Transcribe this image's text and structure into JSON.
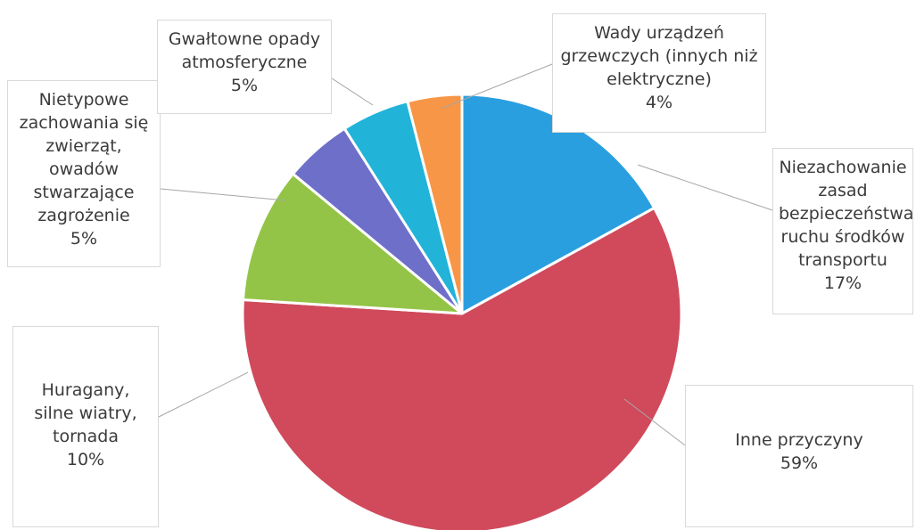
{
  "chart_data": {
    "type": "pie",
    "legend": "none",
    "slices": [
      {
        "label_lines": [
          "Niezachowanie",
          "zasad",
          "bezpieczeństwa",
          "ruchu środków",
          "transportu"
        ],
        "value": 17,
        "value_label": "17%",
        "color": "#2a9fe0"
      },
      {
        "label_lines": [
          "Inne przyczyny"
        ],
        "value": 59,
        "value_label": "59%",
        "color": "#d04a5c"
      },
      {
        "label_lines": [
          "Huragany,",
          "silne wiatry,",
          "tornada"
        ],
        "value": 10,
        "value_label": "10%",
        "color": "#94c447"
      },
      {
        "label_lines": [
          "Nietypowe",
          "zachowania się",
          "zwierząt,",
          "owadów",
          "stwarzające",
          "zagrożenie"
        ],
        "value": 5,
        "value_label": "5%",
        "color": "#6e6fc9"
      },
      {
        "label_lines": [
          "Gwałtowne opady",
          "atmosferyczne"
        ],
        "value": 5,
        "value_label": "5%",
        "color": "#21b3d8"
      },
      {
        "label_lines": [
          "Wady urządzeń",
          "grzewczych (innych niż",
          "elektryczne)"
        ],
        "value": 4,
        "value_label": "4%",
        "color": "#f79646"
      }
    ]
  }
}
